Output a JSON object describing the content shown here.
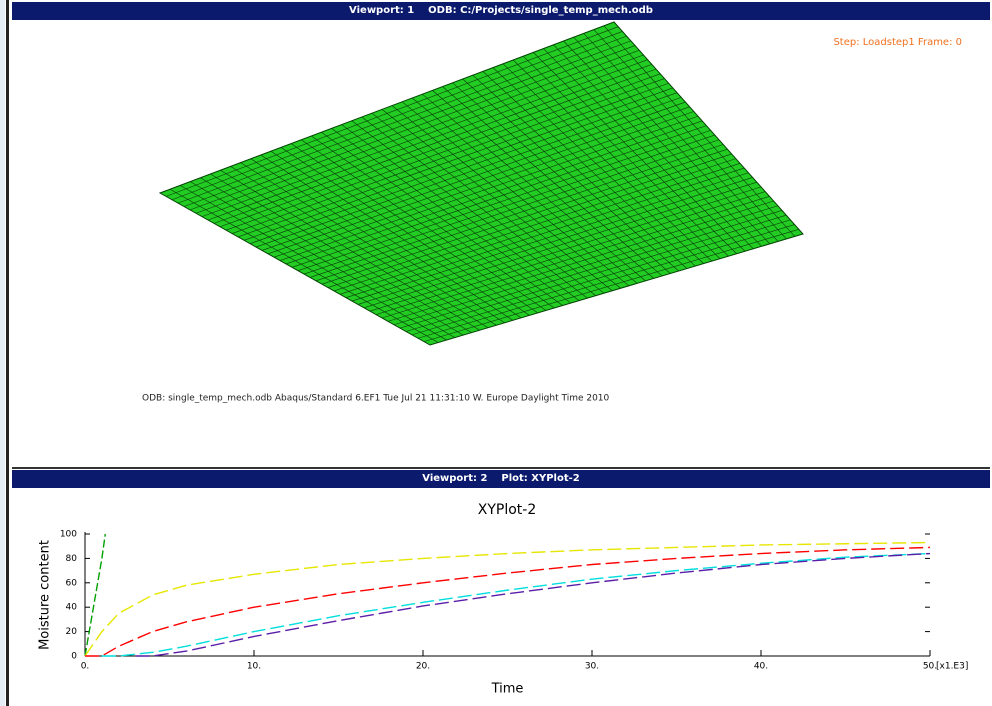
{
  "viewport1": {
    "title": "Viewport: 1    ODB: C:/Projects/single_temp_mech.odb",
    "step_label": "Step: Loadstep1  Frame: 0",
    "odb_info": "ODB: single_temp_mech.odb    Abaqus/Standard 6.EF1    Tue Jul 21 11:31:10 W. Europe Daylight Time 2010"
  },
  "viewport2": {
    "title": "Viewport: 2    Plot: XYPlot-2"
  },
  "chart_data": {
    "type": "line",
    "title": "XYPlot-2",
    "x_label": "Time",
    "y_label": "Moisture content",
    "x_multiplier": "[x1.E3]",
    "xlim": [
      0,
      50
    ],
    "ylim": [
      0,
      100
    ],
    "xticks": [
      {
        "value": 0,
        "label": "0."
      },
      {
        "value": 10,
        "label": "10."
      },
      {
        "value": 20,
        "label": "20."
      },
      {
        "value": 30,
        "label": "30."
      },
      {
        "value": 40,
        "label": "40."
      },
      {
        "value": 50,
        "label": "50."
      }
    ],
    "yticks": [
      0,
      20,
      40,
      60,
      80,
      100
    ],
    "series": [
      {
        "color": "#00a000",
        "x": [
          0,
          0.5,
          1,
          1.2
        ],
        "values": [
          0,
          40,
          80,
          100
        ]
      },
      {
        "color": "#e6e600",
        "x": [
          0,
          1,
          2,
          4,
          6,
          10,
          15,
          20,
          25,
          30,
          35,
          40,
          45,
          50
        ],
        "values": [
          0,
          20,
          35,
          50,
          58,
          67,
          75,
          80,
          84,
          87,
          89,
          91,
          92,
          93
        ]
      },
      {
        "color": "#ff0000",
        "x": [
          0,
          1,
          2,
          4,
          6,
          10,
          15,
          20,
          25,
          30,
          35,
          40,
          45,
          50
        ],
        "values": [
          0,
          0,
          8,
          20,
          28,
          40,
          51,
          60,
          68,
          75,
          80,
          84,
          87,
          89
        ]
      },
      {
        "color": "#00dede",
        "x": [
          1,
          2,
          4,
          6,
          10,
          15,
          20,
          25,
          30,
          35,
          40,
          45,
          50
        ],
        "values": [
          0,
          0,
          3,
          8,
          20,
          33,
          44,
          54,
          63,
          70,
          76,
          81,
          84
        ]
      },
      {
        "color": "#5a1ea8",
        "x": [
          3,
          4,
          6,
          10,
          15,
          20,
          25,
          30,
          35,
          40,
          45,
          50
        ],
        "values": [
          0,
          0,
          4,
          16,
          29,
          41,
          51,
          60,
          68,
          75,
          80,
          84
        ]
      }
    ]
  }
}
